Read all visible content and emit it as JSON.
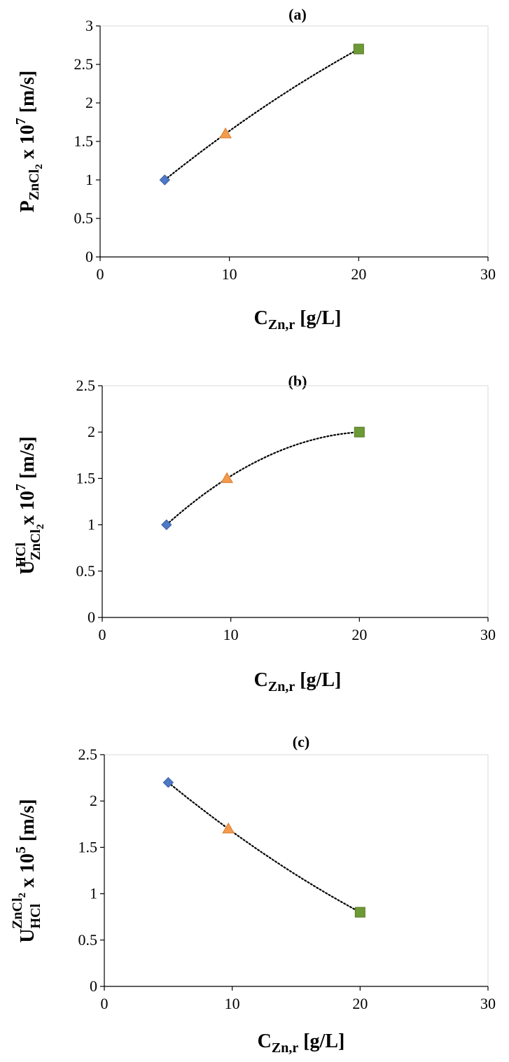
{
  "colors": {
    "axis": "#000000",
    "series_diamond": "#4e79c7",
    "series_triangle": "#f39a4c",
    "series_square": "#6e9a35",
    "trendline": "#000000"
  },
  "chart_data": [
    {
      "type": "scatter",
      "title": "(a)",
      "xlabel": {
        "base": "C",
        "sub": "Zn,r",
        "rest": " [g/L]"
      },
      "ylabel": {
        "base": "P",
        "sub": "ZnCl",
        "subsub": "2",
        "rest": " x 10",
        "sup": "7",
        "tail": " [m/s]"
      },
      "xlim": [
        0,
        30
      ],
      "ylim": [
        0,
        3
      ],
      "xticks": [
        "0",
        "10",
        "20",
        "30"
      ],
      "yticks": [
        "0",
        "0.5",
        "1",
        "1.5",
        "2",
        "2.5",
        "3"
      ],
      "grid": false,
      "legend": "none",
      "trendline": "dotted",
      "points": [
        {
          "x": 5,
          "y": 1.0,
          "marker": "diamond"
        },
        {
          "x": 9.7,
          "y": 1.6,
          "marker": "triangle"
        },
        {
          "x": 20,
          "y": 2.7,
          "marker": "square"
        }
      ]
    },
    {
      "type": "scatter",
      "title": "(b)",
      "xlabel": {
        "base": "C",
        "sub": "Zn,r",
        "rest": " [g/L]"
      },
      "ylabel": {
        "base": "U",
        "sub": "ZnCl",
        "subsub": "2",
        "sup": "HCl",
        "rest": " x 10",
        "sup2": "7",
        "tail": " [m/s]"
      },
      "xlim": [
        0,
        30
      ],
      "ylim": [
        0,
        2.5
      ],
      "xticks": [
        "0",
        "10",
        "20",
        "30"
      ],
      "yticks": [
        "0",
        "0.5",
        "1",
        "1.5",
        "2",
        "2.5"
      ],
      "grid": false,
      "legend": "none",
      "trendline": "dotted",
      "points": [
        {
          "x": 5,
          "y": 1.0,
          "marker": "diamond"
        },
        {
          "x": 9.7,
          "y": 1.5,
          "marker": "triangle"
        },
        {
          "x": 20,
          "y": 2.0,
          "marker": "square"
        }
      ]
    },
    {
      "type": "scatter",
      "title": "(c)",
      "xlabel": {
        "base": "C",
        "sub": "Zn,r",
        "rest": " [g/L]"
      },
      "ylabel": {
        "base": "U",
        "sub": "HCl",
        "sup": "ZnCl",
        "supsub": "2",
        "rest": " x 10",
        "sup2": "5",
        "tail": " [m/s]"
      },
      "xlim": [
        0,
        30
      ],
      "ylim": [
        0,
        2.5
      ],
      "xticks": [
        "0",
        "10",
        "20",
        "30"
      ],
      "yticks": [
        "0",
        "0.5",
        "1",
        "1.5",
        "2",
        "2.5"
      ],
      "grid": false,
      "legend": "none",
      "trendline": "dotted",
      "points": [
        {
          "x": 5,
          "y": 2.2,
          "marker": "diamond"
        },
        {
          "x": 9.7,
          "y": 1.7,
          "marker": "triangle"
        },
        {
          "x": 20,
          "y": 0.8,
          "marker": "square"
        }
      ]
    }
  ]
}
